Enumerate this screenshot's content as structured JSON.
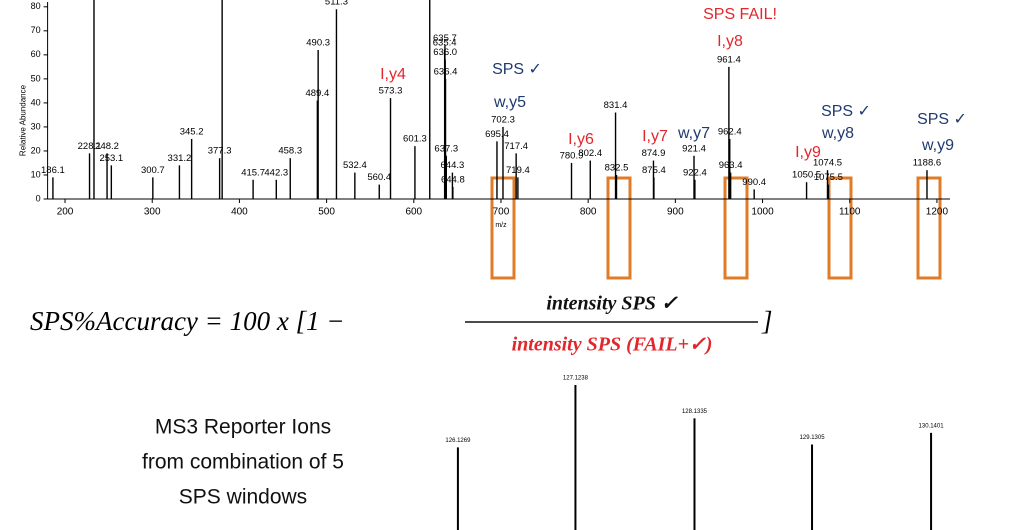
{
  "chart_data": [
    {
      "type": "spectrum",
      "ylabel": "Relative Abundance",
      "xlabel": "m/z",
      "color": "#000000",
      "xlim": [
        180,
        1215
      ],
      "ylim": [
        0,
        82
      ],
      "xticks": [
        200,
        300,
        400,
        500,
        600,
        700,
        800,
        900,
        1000,
        1100,
        1200
      ],
      "yticks": [
        0,
        10,
        20,
        30,
        40,
        50,
        60,
        70,
        80
      ],
      "x": [
        186.1,
        228.1,
        233.2,
        248.2,
        253.1,
        300.7,
        331.2,
        345.2,
        377.3,
        380.2,
        415.7,
        442.3,
        458.3,
        489.4,
        490.3,
        511.3,
        532.4,
        560.4,
        573.3,
        601.3,
        618.3,
        635.4,
        635.7,
        636.0,
        636.4,
        637.3,
        644.3,
        644.8,
        695.4,
        702.3,
        717.4,
        719.4,
        780.9,
        802.4,
        831.4,
        832.5,
        874.9,
        875.4,
        921.4,
        922.4,
        961.4,
        962.4,
        963.4,
        990.4,
        1050.5,
        1074.5,
        1075.5,
        1188.6
      ],
      "values": [
        9,
        19,
        100,
        19,
        14,
        9,
        14,
        25,
        17,
        100,
        8,
        8,
        17,
        41,
        62,
        79,
        11,
        6,
        42,
        22,
        100,
        62,
        64,
        58,
        50,
        18,
        11,
        5,
        24,
        30,
        19,
        9,
        15,
        16,
        36,
        10,
        16,
        9,
        18,
        8,
        55,
        25,
        11,
        4,
        7,
        12,
        6,
        12
      ],
      "peak_labels": [
        "186.1",
        "228.1",
        null,
        "248.2",
        "253.1",
        "300.7",
        "331.2",
        "345.2",
        "377.3",
        null,
        "415.7",
        "442.3",
        "458.3",
        "489.4",
        "490.3",
        "511.3",
        "532.4",
        "560.4",
        "573.3",
        "601.3",
        null,
        "635.4",
        "635.7",
        "636.0",
        "636.4",
        "637.3",
        "644.3",
        "644.8",
        "695.4",
        "702.3",
        "717.4",
        "719.4",
        "780.9",
        "802.4",
        "831.4",
        "832.5",
        "874.9",
        "875.4",
        "921.4",
        "922.4",
        "961.4",
        "962.4",
        "963.4",
        "990.4",
        "1050.5",
        "1074.5",
        "1075.5",
        "1188.6"
      ],
      "annotations": [
        {
          "text": "SPS FAIL!",
          "color": "#e3262b"
        },
        {
          "text": "I,y8",
          "color": "#e3262b"
        },
        {
          "text": "I,y4",
          "color": "#e3262b"
        },
        {
          "text": "SPS ✓",
          "color": "#1f3a6e"
        },
        {
          "text": "w,y5",
          "color": "#1f3a6e"
        },
        {
          "text": "I,y6",
          "color": "#e3262b"
        },
        {
          "text": "I,y7",
          "color": "#e3262b"
        },
        {
          "text": "w,y7",
          "color": "#1f3a6e"
        },
        {
          "text": "I,y9",
          "color": "#e3262b"
        },
        {
          "text": "SPS ✓",
          "color": "#1f3a6e"
        },
        {
          "text": "w,y8",
          "color": "#1f3a6e"
        },
        {
          "text": "SPS ✓",
          "color": "#1f3a6e"
        },
        {
          "text": "w,y9",
          "color": "#1f3a6e"
        }
      ]
    },
    {
      "type": "spectrum",
      "color": "#000000",
      "xlim": [
        125.5,
        130.5
      ],
      "ylim": [
        0,
        100
      ],
      "x": [
        126.1269,
        127.1238,
        128.1335,
        129.1305,
        130.1401
      ],
      "values": [
        57,
        100,
        77,
        59,
        67
      ],
      "peak_labels": [
        "126.1269",
        "127.1238",
        "128.1335",
        "129.1305",
        "130.1401"
      ]
    }
  ],
  "formula": {
    "lhs": "SPS%Accuracy = 100 x [1 −",
    "numerator": "intensity SPS ✓",
    "denominator": "intensity SPS (FAIL+✓)",
    "close": "]"
  },
  "caption": [
    "MS3 Reporter Ions",
    "from combination of 5",
    "SPS windows"
  ]
}
